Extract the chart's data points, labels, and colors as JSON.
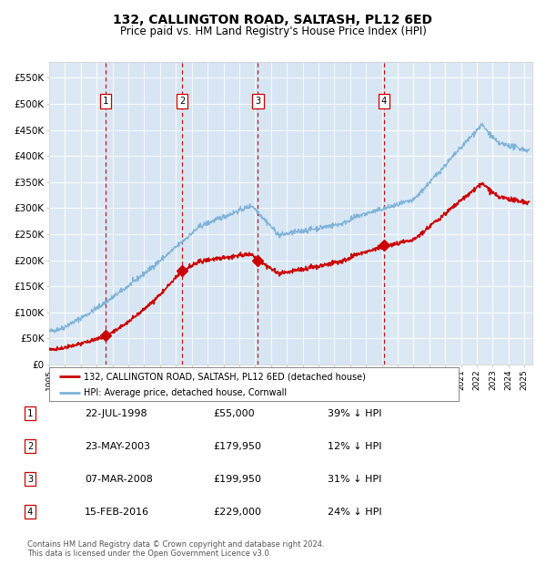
{
  "title": "132, CALLINGTON ROAD, SALTASH, PL12 6ED",
  "subtitle": "Price paid vs. HM Land Registry's House Price Index (HPI)",
  "xlim_start": 1995.0,
  "xlim_end": 2025.5,
  "ylim": [
    0,
    580000
  ],
  "yticks": [
    0,
    50000,
    100000,
    150000,
    200000,
    250000,
    300000,
    350000,
    400000,
    450000,
    500000,
    550000
  ],
  "ytick_labels": [
    "£0",
    "£50K",
    "£100K",
    "£150K",
    "£200K",
    "£250K",
    "£300K",
    "£350K",
    "£400K",
    "£450K",
    "£500K",
    "£550K"
  ],
  "background_color": "#dce9f5",
  "grid_color": "#ffffff",
  "red_line_color": "#cc0000",
  "blue_line_color": "#7fb3d9",
  "vline_color": "#cc0000",
  "sales": [
    {
      "date_num": 1998.56,
      "price": 55000,
      "label": "1"
    },
    {
      "date_num": 2003.39,
      "price": 179950,
      "label": "2"
    },
    {
      "date_num": 2008.18,
      "price": 199950,
      "label": "3"
    },
    {
      "date_num": 2016.12,
      "price": 229000,
      "label": "4"
    }
  ],
  "sale_dates_str": [
    "22-JUL-1998",
    "23-MAY-2003",
    "07-MAR-2008",
    "15-FEB-2016"
  ],
  "sale_prices_str": [
    "£55,000",
    "£179,950",
    "£199,950",
    "£229,000"
  ],
  "sale_pct_str": [
    "39% ↓ HPI",
    "12% ↓ HPI",
    "31% ↓ HPI",
    "24% ↓ HPI"
  ],
  "legend_red_label": "132, CALLINGTON ROAD, SALTASH, PL12 6ED (detached house)",
  "legend_blue_label": "HPI: Average price, detached house, Cornwall",
  "footer": "Contains HM Land Registry data © Crown copyright and database right 2024.\nThis data is licensed under the Open Government Licence v3.0."
}
